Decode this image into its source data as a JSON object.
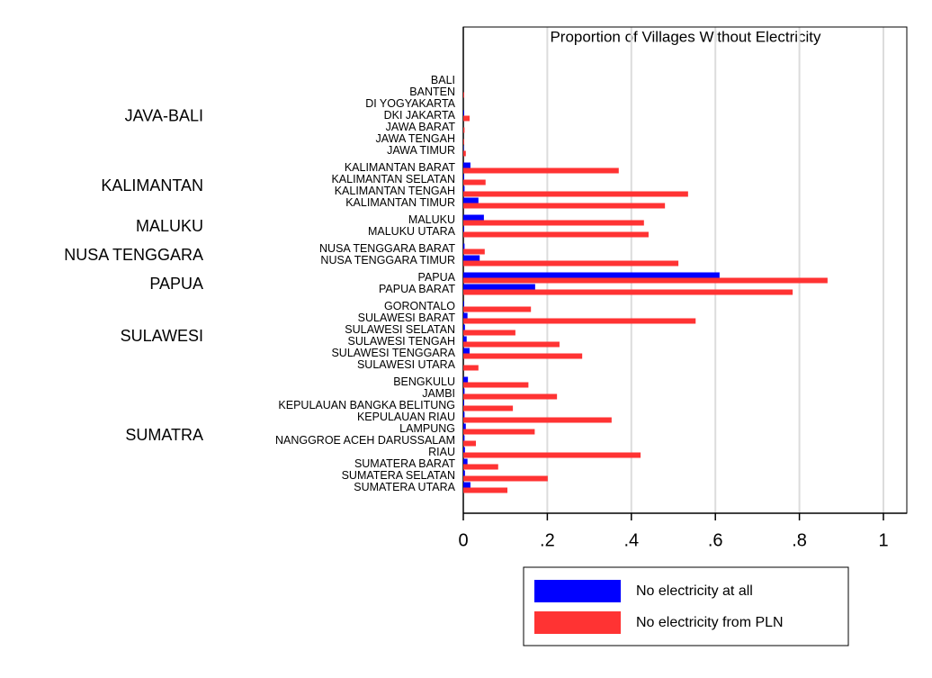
{
  "chart_data": {
    "type": "bar",
    "orientation": "horizontal",
    "title": "Proportion of Villages Without Electricity",
    "groups": [
      {
        "label": "JAVA-BALI",
        "categories": [
          "BALI",
          "BANTEN",
          "DI YOGYAKARTA",
          "DKI JAKARTA",
          "JAWA BARAT",
          "JAWA TENGAH",
          "JAWA TIMUR"
        ]
      },
      {
        "label": "KALIMANTAN",
        "categories": [
          "KALIMANTAN BARAT",
          "KALIMANTAN SELATAN",
          "KALIMANTAN TENGAH",
          "KALIMANTAN TIMUR"
        ]
      },
      {
        "label": "MALUKU",
        "categories": [
          "MALUKU",
          "MALUKU UTARA"
        ]
      },
      {
        "label": "NUSA TENGGARA",
        "categories": [
          "NUSA TENGGARA BARAT",
          "NUSA TENGGARA TIMUR"
        ]
      },
      {
        "label": "PAPUA",
        "categories": [
          "PAPUA",
          "PAPUA BARAT"
        ]
      },
      {
        "label": "SULAWESI",
        "categories": [
          "GORONTALO",
          "SULAWESI BARAT",
          "SULAWESI SELATAN",
          "SULAWESI TENGAH",
          "SULAWESI TENGGARA",
          "SULAWESI UTARA"
        ]
      },
      {
        "label": "SUMATRA",
        "categories": [
          "BENGKULU",
          "JAMBI",
          "KEPULAUAN BANGKA BELITUNG",
          "KEPULAUAN RIAU",
          "LAMPUNG",
          "NANGGROE ACEH DARUSSALAM",
          "RIAU",
          "SUMATERA BARAT",
          "SUMATERA SELATAN",
          "SUMATERA UTARA"
        ]
      }
    ],
    "series": [
      {
        "name": "No electricity at all",
        "color": "#0000ff",
        "values": [
          0,
          0,
          0,
          0.002,
          0,
          0,
          0.001,
          0.017,
          0.002,
          0.003,
          0.036,
          0.049,
          0.002,
          0.003,
          0.039,
          0.61,
          0.171,
          0.002,
          0.01,
          0.004,
          0.008,
          0.015,
          0,
          0.011,
          0.003,
          0.002,
          0.003,
          0.006,
          0.003,
          0.004,
          0.01,
          0.004,
          0.017
        ]
      },
      {
        "name": "No electricity from PLN",
        "color": "#ff3333",
        "values": [
          0,
          0.002,
          0,
          0.015,
          0.003,
          0.002,
          0.006,
          0.37,
          0.053,
          0.535,
          0.48,
          0.43,
          0.441,
          0.051,
          0.512,
          0.867,
          0.784,
          0.161,
          0.553,
          0.124,
          0.229,
          0.283,
          0.036,
          0.155,
          0.223,
          0.118,
          0.353,
          0.17,
          0.03,
          0.422,
          0.083,
          0.201,
          0.105
        ]
      }
    ],
    "xlim": [
      0,
      1.05
    ],
    "xticks": [
      0,
      {
        "value": 0.2,
        "label": ".2"
      },
      {
        "value": 0.4,
        "label": ".4"
      },
      {
        "value": 0.6,
        "label": ".6"
      },
      {
        "value": 0.8,
        "label": ".8"
      },
      1
    ],
    "grid": true
  }
}
